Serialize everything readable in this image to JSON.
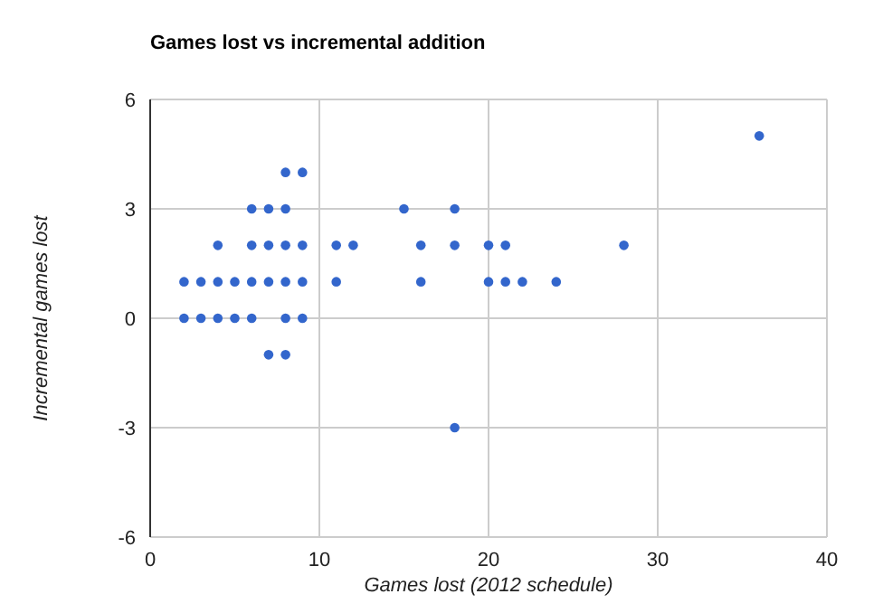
{
  "chart_data": {
    "type": "scatter",
    "title": "Games lost vs incremental addition",
    "xlabel": "Games lost (2012 schedule)",
    "ylabel": "Incremental games lost",
    "x": [
      2,
      3,
      4,
      5,
      6,
      8,
      9,
      2,
      3,
      4,
      5,
      6,
      7,
      8,
      9,
      11,
      16,
      20,
      21,
      22,
      24,
      4,
      6,
      7,
      8,
      9,
      11,
      12,
      16,
      18,
      20,
      21,
      28,
      6,
      7,
      8,
      15,
      18,
      8,
      9,
      7,
      8,
      18,
      36
    ],
    "values": [
      0,
      0,
      0,
      0,
      0,
      0,
      0,
      1,
      1,
      1,
      1,
      1,
      1,
      1,
      1,
      1,
      1,
      1,
      1,
      1,
      1,
      2,
      2,
      2,
      2,
      2,
      2,
      2,
      2,
      2,
      2,
      2,
      2,
      3,
      3,
      3,
      3,
      3,
      4,
      4,
      -1,
      -1,
      -3,
      5
    ],
    "color": "#3366cc",
    "marker": "circle",
    "xlim": [
      0,
      40
    ],
    "xticks": [
      0,
      10,
      20,
      30,
      40
    ],
    "ylim": [
      -6,
      6
    ],
    "yticks": [
      -6,
      -3,
      0,
      3,
      6
    ],
    "grid": true,
    "legend": false
  }
}
